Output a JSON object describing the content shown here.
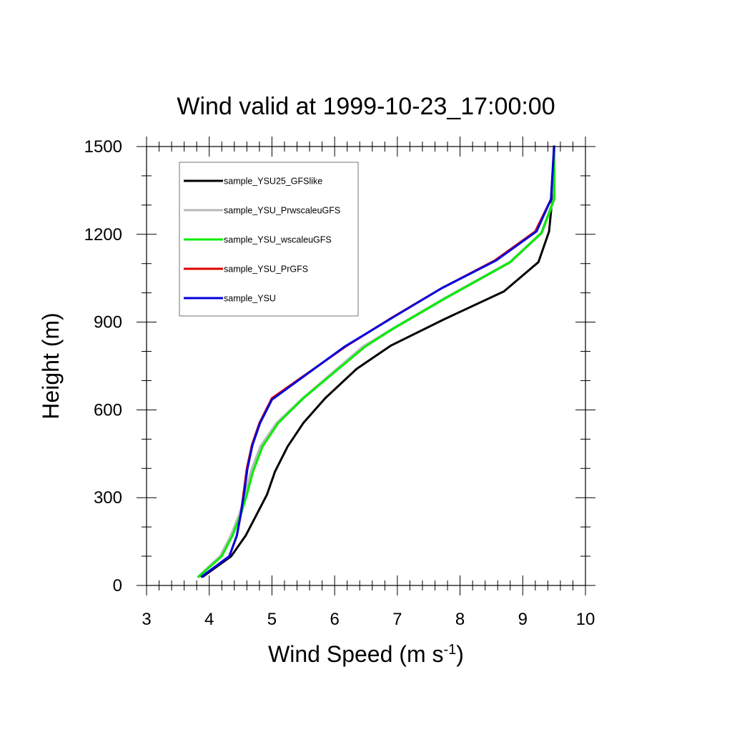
{
  "chart_data": {
    "type": "line",
    "title": "Wind valid at 1999-10-23_17:00:00",
    "xlabel": {
      "main": "Wind Speed (m s",
      "sup": "-1",
      "end": ")"
    },
    "ylabel": "Height (m)",
    "xlim": [
      3,
      10
    ],
    "ylim": [
      0,
      1500
    ],
    "x_ticks": [
      3,
      4,
      5,
      6,
      7,
      8,
      9,
      10
    ],
    "y_ticks": [
      0,
      300,
      600,
      900,
      1200,
      1500
    ],
    "x_minor_step": 0.2,
    "y_minor_step": 100,
    "grid": false,
    "legend_position": "top-left",
    "series": [
      {
        "name": "sample_YSU25_GFSlike",
        "color": "#000000",
        "points": [
          [
            3.9,
            30
          ],
          [
            4.35,
            100
          ],
          [
            4.58,
            170
          ],
          [
            4.75,
            240
          ],
          [
            4.92,
            310
          ],
          [
            5.05,
            390
          ],
          [
            5.25,
            475
          ],
          [
            5.5,
            555
          ],
          [
            5.85,
            640
          ],
          [
            6.35,
            740
          ],
          [
            6.9,
            820
          ],
          [
            7.75,
            910
          ],
          [
            8.7,
            1005
          ],
          [
            9.25,
            1105
          ],
          [
            9.42,
            1210
          ],
          [
            9.47,
            1320
          ],
          [
            9.5,
            1500
          ]
        ]
      },
      {
        "name": "sample_YSU_PrwscaleuGFS",
        "color": "#b8b8b8",
        "points": [
          [
            3.83,
            30
          ],
          [
            4.18,
            100
          ],
          [
            4.35,
            170
          ],
          [
            4.48,
            240
          ],
          [
            4.58,
            310
          ],
          [
            4.67,
            390
          ],
          [
            4.82,
            475
          ],
          [
            5.08,
            555
          ],
          [
            5.5,
            640
          ],
          [
            6.45,
            815
          ],
          [
            6.95,
            880
          ],
          [
            7.75,
            980
          ],
          [
            8.8,
            1105
          ],
          [
            9.3,
            1205
          ],
          [
            9.5,
            1320
          ],
          [
            9.5,
            1500
          ]
        ]
      },
      {
        "name": "sample_YSU_wscaleuGFS",
        "color": "#00ee00",
        "points": [
          [
            3.83,
            30
          ],
          [
            4.2,
            100
          ],
          [
            4.37,
            170
          ],
          [
            4.5,
            240
          ],
          [
            4.6,
            310
          ],
          [
            4.7,
            390
          ],
          [
            4.85,
            475
          ],
          [
            5.1,
            555
          ],
          [
            5.5,
            640
          ],
          [
            6.48,
            815
          ],
          [
            6.95,
            880
          ],
          [
            7.75,
            980
          ],
          [
            8.8,
            1105
          ],
          [
            9.3,
            1205
          ],
          [
            9.5,
            1320
          ],
          [
            9.5,
            1500
          ]
        ]
      },
      {
        "name": "sample_YSU_PrGFS",
        "color": "#e00000",
        "points": [
          [
            3.88,
            30
          ],
          [
            4.32,
            100
          ],
          [
            4.44,
            170
          ],
          [
            4.5,
            240
          ],
          [
            4.55,
            320
          ],
          [
            4.6,
            400
          ],
          [
            4.68,
            480
          ],
          [
            4.8,
            555
          ],
          [
            5.0,
            640
          ],
          [
            6.2,
            820
          ],
          [
            6.95,
            920
          ],
          [
            7.7,
            1015
          ],
          [
            8.55,
            1110
          ],
          [
            9.2,
            1210
          ],
          [
            9.45,
            1320
          ],
          [
            9.5,
            1500
          ]
        ]
      },
      {
        "name": "sample_YSU",
        "color": "#0000e0",
        "points": [
          [
            3.88,
            30
          ],
          [
            4.32,
            100
          ],
          [
            4.44,
            170
          ],
          [
            4.5,
            240
          ],
          [
            4.56,
            320
          ],
          [
            4.61,
            400
          ],
          [
            4.69,
            480
          ],
          [
            4.81,
            555
          ],
          [
            5.0,
            635
          ],
          [
            6.15,
            815
          ],
          [
            6.92,
            915
          ],
          [
            7.7,
            1015
          ],
          [
            8.57,
            1110
          ],
          [
            9.22,
            1210
          ],
          [
            9.45,
            1320
          ],
          [
            9.5,
            1500
          ]
        ]
      }
    ]
  }
}
